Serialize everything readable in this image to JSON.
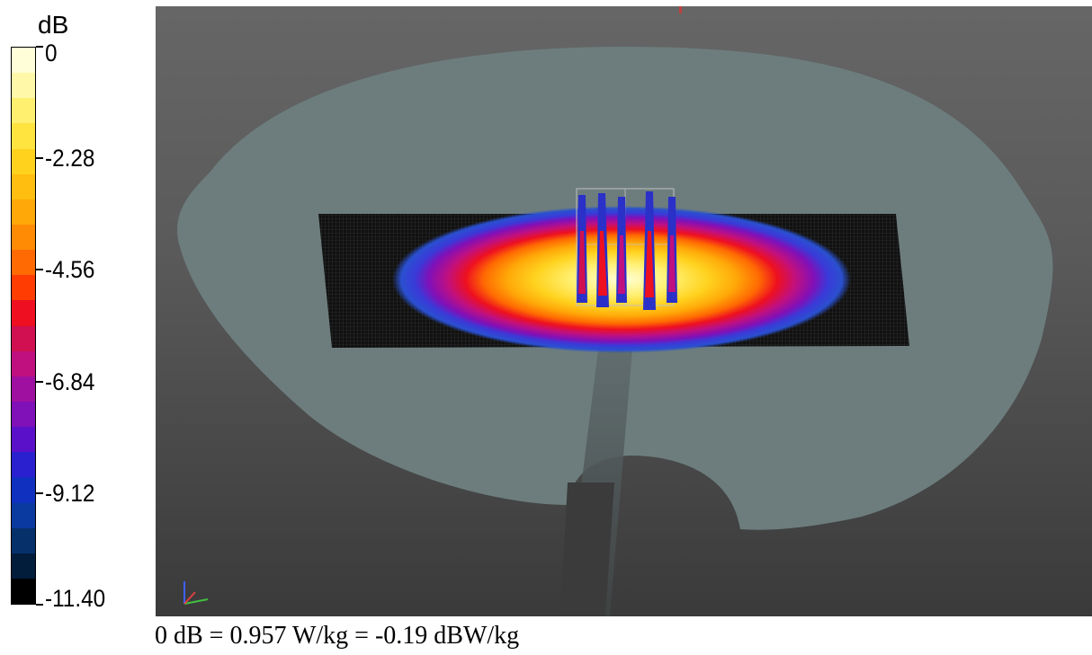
{
  "legend": {
    "unit": "dB",
    "ticks": [
      "0",
      "-2.28",
      "-4.56",
      "-6.84",
      "-9.12",
      "-11.40"
    ],
    "colors": [
      "#fffed8",
      "#fff8a8",
      "#fff070",
      "#ffe440",
      "#ffd21e",
      "#ffbe10",
      "#ffa808",
      "#ff8a04",
      "#ff6a02",
      "#ff3c02",
      "#ee1020",
      "#d01050",
      "#c01080",
      "#a010a0",
      "#8010b8",
      "#5a10c8",
      "#2a20d0",
      "#1030c0",
      "#0a3aa0",
      "#05306a",
      "#021c3c",
      "#000000"
    ]
  },
  "caption": "0 dB = 0.957 W/kg = -0.19 dBW/kg"
}
